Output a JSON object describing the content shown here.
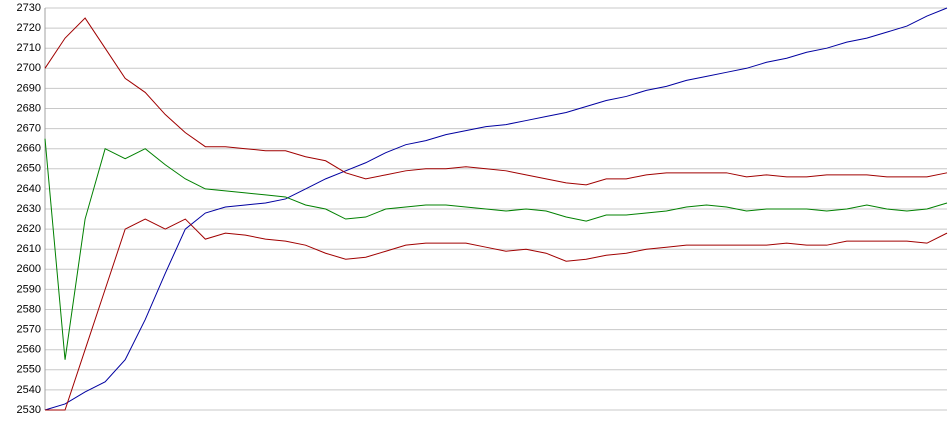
{
  "chart_data": {
    "type": "line",
    "categories": [
      null,
      null,
      null,
      null,
      null,
      null,
      null,
      null,
      null,
      null,
      null,
      null,
      null,
      null,
      null,
      null,
      null,
      null,
      null,
      null,
      null,
      null,
      null,
      null,
      null,
      null,
      null,
      null,
      null,
      null,
      null,
      null,
      null,
      null,
      null,
      null,
      null,
      null,
      null,
      null,
      null,
      null,
      null,
      null,
      null,
      null
    ],
    "series": [
      {
        "color": "#0000a0",
        "values": [
          2530,
          2533,
          2539,
          2544,
          2555,
          2575,
          2598,
          2620,
          2628,
          2631,
          2632,
          2633,
          2635,
          2640,
          2645,
          2649,
          2653,
          2658,
          2662,
          2664,
          2667,
          2669,
          2671,
          2672,
          2674,
          2676,
          2678,
          2681,
          2684,
          2686,
          2689,
          2691,
          2694,
          2696,
          2698,
          2700,
          2703,
          2705,
          2708,
          2710,
          2713,
          2715,
          2718,
          2721,
          2726,
          2730
        ]
      },
      {
        "color": "#008000",
        "values": [
          2665,
          2555,
          2625,
          2660,
          2655,
          2660,
          2652,
          2645,
          2640,
          2639,
          2638,
          2637,
          2636,
          2632,
          2630,
          2625,
          2626,
          2630,
          2631,
          2632,
          2632,
          2631,
          2630,
          2629,
          2630,
          2629,
          2626,
          2624,
          2627,
          2627,
          2628,
          2629,
          2631,
          2632,
          2631,
          2629,
          2630,
          2630,
          2630,
          2629,
          2630,
          2632,
          2630,
          2629,
          2630,
          2633
        ]
      },
      {
        "color": "#a00000",
        "values": [
          2700,
          2715,
          2725,
          2710,
          2695,
          2688,
          2677,
          2668,
          2661,
          2661,
          2660,
          2659,
          2659,
          2656,
          2654,
          2648,
          2645,
          2647,
          2649,
          2650,
          2650,
          2651,
          2650,
          2649,
          2647,
          2645,
          2643,
          2642,
          2645,
          2645,
          2647,
          2648,
          2648,
          2648,
          2648,
          2646,
          2647,
          2646,
          2646,
          2647,
          2647,
          2647,
          2646,
          2646,
          2646,
          2648
        ]
      },
      {
        "color": "#a00000",
        "values": [
          2530,
          2530,
          2560,
          2590,
          2620,
          2625,
          2620,
          2625,
          2615,
          2618,
          2617,
          2615,
          2614,
          2612,
          2608,
          2605,
          2606,
          2609,
          2612,
          2613,
          2613,
          2613,
          2611,
          2609,
          2610,
          2608,
          2604,
          2605,
          2607,
          2608,
          2610,
          2611,
          2612,
          2612,
          2612,
          2612,
          2612,
          2613,
          2612,
          2612,
          2614,
          2614,
          2614,
          2614,
          2613,
          2618
        ]
      }
    ],
    "ylim": [
      2530,
      2730
    ],
    "yticks": [
      2530,
      2540,
      2550,
      2560,
      2570,
      2580,
      2590,
      2600,
      2610,
      2620,
      2630,
      2640,
      2650,
      2660,
      2670,
      2680,
      2690,
      2700,
      2710,
      2720,
      2730
    ],
    "grid": true
  }
}
